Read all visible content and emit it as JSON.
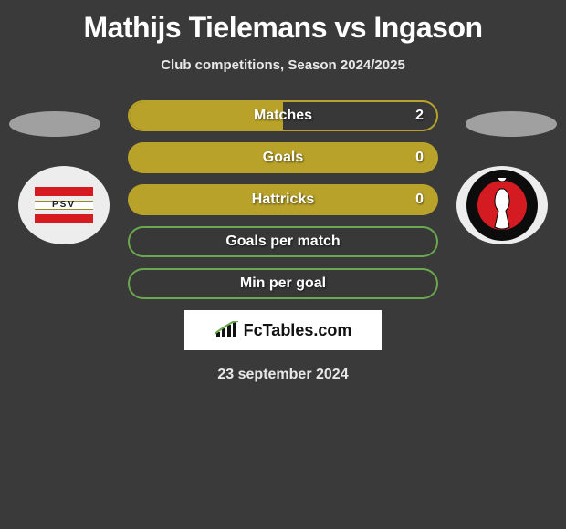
{
  "title": "Mathijs Tielemans vs Ingason",
  "subtitle": "Club competitions, Season 2024/2025",
  "bar_style": {
    "yellow_border": "#b9a22a",
    "yellow_fill": "#b9a22a",
    "green_border": "#6aa84f"
  },
  "bars": [
    {
      "label": "Matches",
      "value": "2",
      "mode": "half",
      "show_value": true
    },
    {
      "label": "Goals",
      "value": "0",
      "mode": "full",
      "show_value": true
    },
    {
      "label": "Hattricks",
      "value": "0",
      "mode": "full",
      "show_value": true
    },
    {
      "label": "Goals per match",
      "value": "",
      "mode": "green",
      "show_value": false
    },
    {
      "label": "Min per goal",
      "value": "",
      "mode": "green",
      "show_value": false
    }
  ],
  "logo_text": "FcTables.com",
  "date_text": "23 september 2024"
}
